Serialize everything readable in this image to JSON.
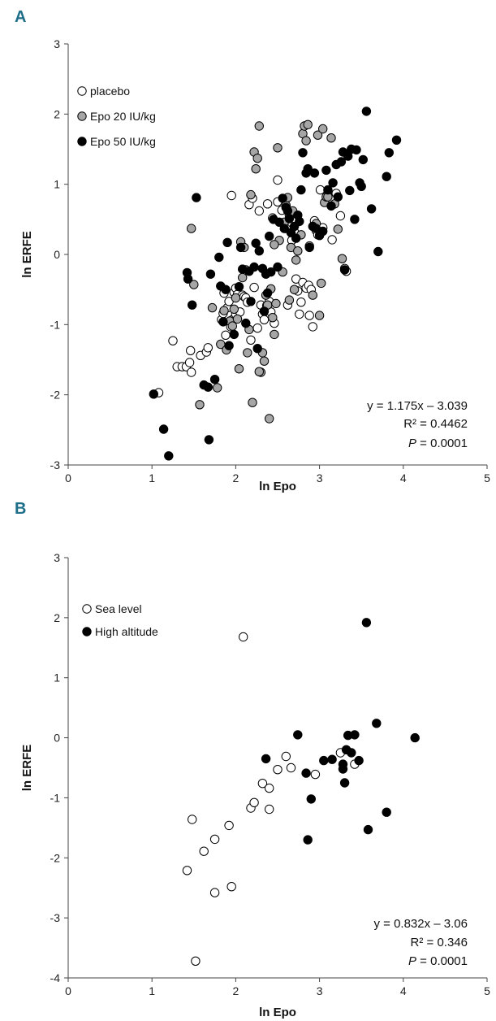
{
  "chart_data": [
    {
      "panel": "A",
      "type": "scatter",
      "xlabel": "ln Epo",
      "ylabel": "ln ERFE",
      "xlim": [
        0,
        5
      ],
      "ylim": [
        -3,
        3
      ],
      "xticks": [
        "0",
        "1",
        "2",
        "3",
        "4",
        "5"
      ],
      "yticks": [
        "-3",
        "-2",
        "-1",
        "0",
        "1",
        "2",
        "3"
      ],
      "legend_position": "top-left",
      "annotation": {
        "equation": "y = 1.175x – 3.039",
        "r2": "R² = 0.4462",
        "p_label": "P",
        "p_value": " = 0.0001"
      },
      "series": [
        {
          "name": "placebo",
          "fill": "#ffffff",
          "points": [
            [
              1.08,
              -1.97
            ],
            [
              1.25,
              -1.23
            ],
            [
              1.3,
              -1.6
            ],
            [
              1.36,
              -1.6
            ],
            [
              1.41,
              -1.6
            ],
            [
              1.45,
              -1.54
            ],
            [
              1.46,
              -1.37
            ],
            [
              1.47,
              -1.68
            ],
            [
              1.58,
              -1.44
            ],
            [
              1.65,
              -1.39
            ],
            [
              1.67,
              -1.33
            ],
            [
              1.83,
              -0.93
            ],
            [
              1.85,
              -0.84
            ],
            [
              1.86,
              -0.55
            ],
            [
              1.88,
              -1.15
            ],
            [
              1.9,
              -0.76
            ],
            [
              1.92,
              -0.67
            ],
            [
              1.94,
              -1.03
            ],
            [
              1.96,
              -0.93
            ],
            [
              1.98,
              -0.54
            ],
            [
              2.0,
              -0.48
            ],
            [
              2.0,
              -0.85
            ],
            [
              2.02,
              -0.57
            ],
            [
              2.05,
              -0.82
            ],
            [
              2.08,
              -0.58
            ],
            [
              2.1,
              -0.6
            ],
            [
              2.12,
              -0.62
            ],
            [
              2.14,
              -0.68
            ],
            [
              2.16,
              0.71
            ],
            [
              2.18,
              -1.22
            ],
            [
              2.2,
              0.8
            ],
            [
              2.22,
              -0.47
            ],
            [
              2.26,
              -1.05
            ],
            [
              2.28,
              0.62
            ],
            [
              2.3,
              -0.72
            ],
            [
              2.32,
              -0.85
            ],
            [
              2.34,
              -0.93
            ],
            [
              2.37,
              -0.73
            ],
            [
              2.38,
              0.72
            ],
            [
              2.4,
              -0.67
            ],
            [
              2.42,
              -0.82
            ],
            [
              2.44,
              0.52
            ],
            [
              2.46,
              -0.98
            ],
            [
              2.5,
              0.75
            ],
            [
              2.5,
              1.06
            ],
            [
              2.55,
              0.63
            ],
            [
              2.6,
              0.37
            ],
            [
              2.64,
              0.56
            ],
            [
              2.67,
              0.2
            ],
            [
              2.7,
              0.32
            ],
            [
              2.72,
              -0.35
            ],
            [
              2.74,
              -0.52
            ],
            [
              2.76,
              -0.85
            ],
            [
              2.78,
              -0.68
            ],
            [
              2.8,
              -0.4
            ],
            [
              2.84,
              -0.48
            ],
            [
              2.87,
              -0.44
            ],
            [
              2.9,
              -0.5
            ],
            [
              2.92,
              -1.03
            ],
            [
              2.94,
              0.48
            ],
            [
              2.96,
              0.34
            ],
            [
              2.98,
              0.28
            ],
            [
              3.01,
              0.92
            ],
            [
              3.04,
              0.38
            ],
            [
              3.1,
              0.84
            ],
            [
              3.15,
              0.21
            ],
            [
              3.2,
              0.87
            ],
            [
              3.25,
              0.55
            ],
            [
              3.3,
              -0.2
            ],
            [
              3.32,
              -0.24
            ],
            [
              2.88,
              -0.87
            ],
            [
              2.62,
              -0.72
            ],
            [
              1.95,
              0.84
            ]
          ]
        },
        {
          "name": "Epo 20 IU/kg",
          "fill": "#a6a6a6",
          "points": [
            [
              1.47,
              0.37
            ],
            [
              1.5,
              -0.43
            ],
            [
              1.57,
              -2.14
            ],
            [
              1.72,
              -0.76
            ],
            [
              1.78,
              -1.9
            ],
            [
              1.82,
              -1.28
            ],
            [
              1.86,
              -0.8
            ],
            [
              1.89,
              -1.36
            ],
            [
              1.93,
              -0.95
            ],
            [
              1.96,
              -1.02
            ],
            [
              1.98,
              -0.78
            ],
            [
              2.0,
              -0.62
            ],
            [
              2.02,
              -0.92
            ],
            [
              2.04,
              -1.63
            ],
            [
              2.06,
              0.18
            ],
            [
              2.08,
              -0.33
            ],
            [
              2.1,
              0.1
            ],
            [
              2.12,
              -0.22
            ],
            [
              2.14,
              -1.4
            ],
            [
              2.16,
              -1.07
            ],
            [
              2.18,
              0.85
            ],
            [
              2.2,
              -2.11
            ],
            [
              2.22,
              1.46
            ],
            [
              2.24,
              1.22
            ],
            [
              2.26,
              1.37
            ],
            [
              2.28,
              1.83
            ],
            [
              2.3,
              -1.68
            ],
            [
              2.32,
              -1.4
            ],
            [
              2.34,
              -1.52
            ],
            [
              2.36,
              -0.58
            ],
            [
              2.38,
              -0.72
            ],
            [
              2.4,
              -2.34
            ],
            [
              2.42,
              -0.49
            ],
            [
              2.44,
              -0.9
            ],
            [
              2.46,
              -1.14
            ],
            [
              2.48,
              -0.7
            ],
            [
              2.5,
              1.52
            ],
            [
              2.52,
              0.2
            ],
            [
              2.56,
              -0.25
            ],
            [
              2.58,
              0.46
            ],
            [
              2.6,
              0.7
            ],
            [
              2.62,
              0.81
            ],
            [
              2.64,
              -0.65
            ],
            [
              2.66,
              0.1
            ],
            [
              2.7,
              -0.5
            ],
            [
              2.72,
              -0.08
            ],
            [
              2.74,
              0.05
            ],
            [
              2.78,
              0.28
            ],
            [
              2.8,
              1.72
            ],
            [
              2.82,
              1.83
            ],
            [
              2.84,
              1.62
            ],
            [
              2.86,
              1.85
            ],
            [
              2.88,
              0.12
            ],
            [
              2.92,
              -0.58
            ],
            [
              2.96,
              0.44
            ],
            [
              2.98,
              1.7
            ],
            [
              3.0,
              -0.87
            ],
            [
              3.02,
              -0.41
            ],
            [
              3.04,
              1.79
            ],
            [
              3.06,
              0.74
            ],
            [
              3.08,
              0.82
            ],
            [
              3.1,
              0.82
            ],
            [
              3.14,
              1.66
            ],
            [
              3.18,
              0.72
            ],
            [
              3.22,
              0.36
            ],
            [
              3.27,
              -0.06
            ],
            [
              2.28,
              -1.67
            ],
            [
              2.46,
              0.14
            ],
            [
              2.68,
              0.62
            ]
          ]
        },
        {
          "name": "Epo 50 IU/kg",
          "fill": "#000000",
          "points": [
            [
              1.02,
              -1.99
            ],
            [
              1.14,
              -2.49
            ],
            [
              1.2,
              -2.87
            ],
            [
              1.42,
              -0.26
            ],
            [
              1.43,
              -0.35
            ],
            [
              1.48,
              -0.72
            ],
            [
              1.53,
              0.81
            ],
            [
              1.62,
              -1.86
            ],
            [
              1.67,
              -1.89
            ],
            [
              1.68,
              -2.64
            ],
            [
              1.7,
              -0.28
            ],
            [
              1.75,
              -1.78
            ],
            [
              1.8,
              -0.04
            ],
            [
              1.82,
              -0.45
            ],
            [
              1.85,
              -0.96
            ],
            [
              1.88,
              -0.5
            ],
            [
              1.9,
              0.17
            ],
            [
              1.92,
              -1.3
            ],
            [
              1.98,
              -1.14
            ],
            [
              2.04,
              -0.46
            ],
            [
              2.06,
              0.1
            ],
            [
              2.08,
              -0.21
            ],
            [
              2.12,
              -0.98
            ],
            [
              2.16,
              -0.24
            ],
            [
              2.18,
              -0.67
            ],
            [
              2.22,
              -0.18
            ],
            [
              2.24,
              0.16
            ],
            [
              2.26,
              -1.34
            ],
            [
              2.28,
              0.05
            ],
            [
              2.32,
              -0.2
            ],
            [
              2.34,
              -0.81
            ],
            [
              2.38,
              -0.55
            ],
            [
              2.4,
              0.26
            ],
            [
              2.42,
              -0.25
            ],
            [
              2.45,
              0.5
            ],
            [
              2.5,
              -0.18
            ],
            [
              2.52,
              0.46
            ],
            [
              2.56,
              0.8
            ],
            [
              2.6,
              0.67
            ],
            [
              2.62,
              0.62
            ],
            [
              2.64,
              0.51
            ],
            [
              2.66,
              0.31
            ],
            [
              2.7,
              0.4
            ],
            [
              2.72,
              0.23
            ],
            [
              2.74,
              0.56
            ],
            [
              2.76,
              0.47
            ],
            [
              2.78,
              0.92
            ],
            [
              2.8,
              1.45
            ],
            [
              2.84,
              1.16
            ],
            [
              2.86,
              1.22
            ],
            [
              2.88,
              0.1
            ],
            [
              2.92,
              0.4
            ],
            [
              2.94,
              1.16
            ],
            [
              2.96,
              0.37
            ],
            [
              3.0,
              0.27
            ],
            [
              3.04,
              0.33
            ],
            [
              3.08,
              1.2
            ],
            [
              3.1,
              0.92
            ],
            [
              3.14,
              0.69
            ],
            [
              3.16,
              1.02
            ],
            [
              3.2,
              1.28
            ],
            [
              3.22,
              0.82
            ],
            [
              3.26,
              1.32
            ],
            [
              3.28,
              1.46
            ],
            [
              3.3,
              -0.22
            ],
            [
              3.34,
              1.4
            ],
            [
              3.38,
              1.5
            ],
            [
              3.42,
              0.5
            ],
            [
              3.44,
              1.49
            ],
            [
              3.48,
              1.02
            ],
            [
              3.52,
              1.35
            ],
            [
              3.56,
              2.04
            ],
            [
              3.62,
              0.65
            ],
            [
              3.7,
              0.04
            ],
            [
              3.8,
              1.11
            ],
            [
              3.83,
              1.45
            ],
            [
              3.92,
              1.63
            ],
            [
              3.36,
              0.91
            ],
            [
              3.5,
              0.97
            ],
            [
              2.58,
              0.37
            ],
            [
              2.36,
              -0.28
            ]
          ]
        }
      ]
    },
    {
      "panel": "B",
      "type": "scatter",
      "xlabel": "ln Epo",
      "ylabel": "ln ERFE",
      "xlim": [
        0,
        5
      ],
      "ylim": [
        -4,
        3
      ],
      "xticks": [
        "0",
        "1",
        "2",
        "3",
        "4",
        "5"
      ],
      "yticks": [
        "-4",
        "-3",
        "-2",
        "-1",
        "0",
        "1",
        "2",
        "3"
      ],
      "legend_position": "top-left",
      "annotation": {
        "equation": "y = 0.832x – 3.06",
        "r2": "R² = 0.346",
        "p_label": "P",
        "p_value": " = 0.0001"
      },
      "series": [
        {
          "name": "Sea level",
          "fill": "#ffffff",
          "points": [
            [
              1.42,
              -2.21
            ],
            [
              1.48,
              -1.36
            ],
            [
              1.52,
              -3.72
            ],
            [
              1.62,
              -1.89
            ],
            [
              1.75,
              -1.69
            ],
            [
              1.75,
              -2.58
            ],
            [
              1.92,
              -1.46
            ],
            [
              1.95,
              -2.48
            ],
            [
              2.09,
              1.68
            ],
            [
              2.18,
              -1.17
            ],
            [
              2.22,
              -1.08
            ],
            [
              2.32,
              -0.76
            ],
            [
              2.4,
              -0.84
            ],
            [
              2.4,
              -1.19
            ],
            [
              2.5,
              -0.53
            ],
            [
              2.6,
              -0.31
            ],
            [
              2.66,
              -0.5
            ],
            [
              2.95,
              -0.61
            ],
            [
              3.25,
              -0.25
            ],
            [
              3.42,
              -0.44
            ]
          ]
        },
        {
          "name": "High altitude",
          "fill": "#000000",
          "points": [
            [
              2.36,
              -0.35
            ],
            [
              2.74,
              0.05
            ],
            [
              2.84,
              -0.59
            ],
            [
              2.86,
              -1.7
            ],
            [
              2.9,
              -1.02
            ],
            [
              3.05,
              -0.38
            ],
            [
              3.15,
              -0.36
            ],
            [
              3.28,
              -0.44
            ],
            [
              3.28,
              -0.52
            ],
            [
              3.3,
              -0.75
            ],
            [
              3.32,
              -0.2
            ],
            [
              3.34,
              0.04
            ],
            [
              3.38,
              -0.25
            ],
            [
              3.42,
              0.05
            ],
            [
              3.47,
              -0.38
            ],
            [
              3.56,
              1.92
            ],
            [
              3.58,
              -1.53
            ],
            [
              3.68,
              0.24
            ],
            [
              3.8,
              -1.24
            ],
            [
              4.14,
              0.0
            ]
          ]
        }
      ]
    }
  ]
}
